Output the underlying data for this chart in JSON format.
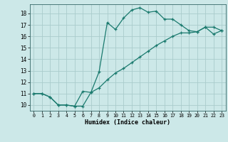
{
  "xlabel": "Humidex (Indice chaleur)",
  "bg_color": "#cce8e8",
  "grid_color": "#aacccc",
  "line_color": "#1a7a6e",
  "xlim": [
    -0.5,
    23.5
  ],
  "ylim": [
    9.5,
    18.8
  ],
  "xticks": [
    0,
    1,
    2,
    3,
    4,
    5,
    6,
    7,
    8,
    9,
    10,
    11,
    12,
    13,
    14,
    15,
    16,
    17,
    18,
    19,
    20,
    21,
    22,
    23
  ],
  "yticks": [
    10,
    11,
    12,
    13,
    14,
    15,
    16,
    17,
    18
  ],
  "line1_x": [
    0,
    1,
    2,
    3,
    4,
    5,
    6,
    7,
    8,
    9,
    10,
    11,
    12,
    13,
    14,
    15,
    16,
    17,
    18,
    19,
    20,
    21,
    22,
    23
  ],
  "line1_y": [
    11.0,
    11.0,
    10.7,
    10.0,
    10.0,
    9.9,
    9.9,
    11.1,
    12.9,
    17.2,
    16.6,
    17.6,
    18.3,
    18.5,
    18.1,
    18.2,
    17.5,
    17.5,
    17.0,
    16.5,
    16.4,
    16.8,
    16.8,
    16.5
  ],
  "line2_x": [
    0,
    1,
    2,
    3,
    4,
    5,
    6,
    7,
    8,
    9,
    10,
    11,
    12,
    13,
    14,
    15,
    16,
    17,
    18,
    19,
    20,
    21,
    22,
    23
  ],
  "line2_y": [
    11.0,
    11.0,
    10.7,
    10.0,
    10.0,
    9.9,
    11.2,
    11.1,
    11.5,
    12.2,
    12.8,
    13.2,
    13.7,
    14.2,
    14.7,
    15.2,
    15.6,
    16.0,
    16.3,
    16.3,
    16.4,
    16.8,
    16.2,
    16.5
  ]
}
